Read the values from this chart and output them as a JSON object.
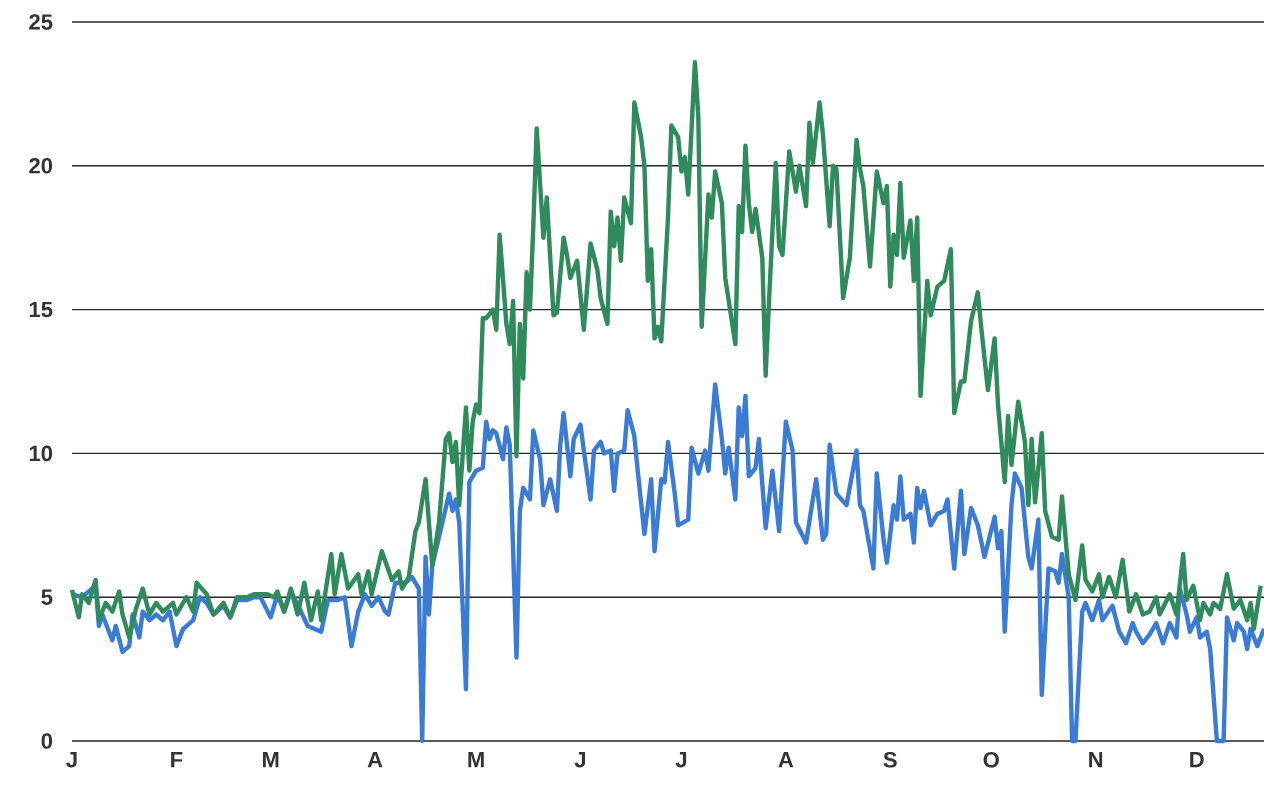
{
  "chart_data": {
    "type": "line",
    "categories": [
      "J",
      null,
      null,
      null,
      null,
      null,
      null,
      null,
      null,
      null,
      null,
      null,
      null,
      null,
      null,
      null,
      null,
      null,
      null,
      null,
      null,
      null,
      null,
      null,
      null,
      null,
      null,
      null,
      null,
      null,
      null,
      "F",
      null,
      null,
      null,
      null,
      null,
      null,
      null,
      null,
      null,
      null,
      null,
      null,
      null,
      null,
      null,
      null,
      null,
      null,
      null,
      null,
      null,
      null,
      null,
      null,
      null,
      null,
      null,
      "M",
      null,
      null,
      null,
      null,
      null,
      null,
      null,
      null,
      null,
      null,
      null,
      null,
      null,
      null,
      null,
      null,
      null,
      null,
      null,
      null,
      null,
      null,
      null,
      null,
      null,
      null,
      null,
      null,
      null,
      null,
      "A",
      null,
      null,
      null,
      null,
      null,
      null,
      null,
      null,
      null,
      null,
      null,
      null,
      null,
      null,
      null,
      null,
      null,
      null,
      null,
      null,
      null,
      null,
      null,
      null,
      null,
      null,
      null,
      null,
      null,
      "M",
      null,
      null,
      null,
      null,
      null,
      null,
      null,
      null,
      null,
      null,
      null,
      null,
      null,
      null,
      null,
      null,
      null,
      null,
      null,
      null,
      null,
      null,
      null,
      null,
      null,
      null,
      null,
      null,
      null,
      null,
      "J",
      null,
      null,
      null,
      null,
      null,
      null,
      null,
      null,
      null,
      null,
      null,
      null,
      null,
      null,
      null,
      null,
      null,
      null,
      null,
      null,
      null,
      null,
      null,
      null,
      null,
      null,
      null,
      null,
      null,
      "J",
      null,
      null,
      null,
      null,
      null,
      null,
      null,
      null,
      null,
      null,
      null,
      null,
      null,
      null,
      null,
      null,
      null,
      null,
      null,
      null,
      null,
      null,
      null,
      null,
      null,
      null,
      null,
      null,
      null,
      null,
      "A",
      null,
      null,
      null,
      null,
      null,
      null,
      null,
      null,
      null,
      null,
      null,
      null,
      null,
      null,
      null,
      null,
      null,
      null,
      null,
      null,
      null,
      null,
      null,
      null,
      null,
      null,
      null,
      null,
      null,
      null,
      "S",
      null,
      null,
      null,
      null,
      null,
      null,
      null,
      null,
      null,
      null,
      null,
      null,
      null,
      null,
      null,
      null,
      null,
      null,
      null,
      null,
      null,
      null,
      null,
      null,
      null,
      null,
      null,
      null,
      null,
      "O",
      null,
      null,
      null,
      null,
      null,
      null,
      null,
      null,
      null,
      null,
      null,
      null,
      null,
      null,
      null,
      null,
      null,
      null,
      null,
      null,
      null,
      null,
      null,
      null,
      null,
      null,
      null,
      null,
      null,
      null,
      "N",
      null,
      null,
      null,
      null,
      null,
      null,
      null,
      null,
      null,
      null,
      null,
      null,
      null,
      null,
      null,
      null,
      null,
      null,
      null,
      null,
      null,
      null,
      null,
      null,
      null,
      null,
      null,
      null,
      null,
      "D",
      null,
      null,
      null,
      null,
      null,
      null,
      null,
      null,
      null,
      null,
      null,
      null,
      null,
      null,
      null,
      null,
      null,
      null,
      null,
      null
    ],
    "ylim": [
      0,
      25
    ],
    "yticks": [
      0,
      5,
      10,
      15,
      20,
      25
    ],
    "grid": "y",
    "series": [
      {
        "color": "#2f8a5c",
        "values": [
          5.25,
          null,
          4.3,
          5.1,
          null,
          4.8,
          null,
          5.6,
          4.2,
          null,
          4.8,
          null,
          4.5,
          null,
          5.2,
          4.4,
          null,
          3.6,
          null,
          4.6,
          null,
          5.3,
          null,
          4.4,
          null,
          4.8,
          null,
          4.5,
          null,
          null,
          4.8,
          4.4,
          null,
          null,
          5.0,
          null,
          4.5,
          5.5,
          null,
          null,
          5.1,
          null,
          4.4,
          null,
          null,
          4.8,
          null,
          4.3,
          null,
          5.0,
          null,
          null,
          5.0,
          null,
          5.1,
          null,
          5.1,
          null,
          5.1,
          null,
          5.0,
          5.2,
          null,
          4.5,
          null,
          5.3,
          null,
          4.4,
          null,
          5.5,
          null,
          4.2,
          null,
          5.2,
          4.2,
          null,
          null,
          6.5,
          5.1,
          null,
          6.5,
          null,
          5.3,
          null,
          null,
          5.8,
          5.1,
          null,
          5.9,
          5.1,
          null,
          null,
          6.6,
          null,
          null,
          5.6,
          null,
          5.9,
          5.3,
          null,
          5.7,
          null,
          7.3,
          7.6,
          null,
          9.1,
          7.6,
          6.1,
          null,
          7.6,
          null,
          10.5,
          10.7,
          9.7,
          10.4,
          8.2,
          null,
          11.6,
          9.4,
          11.1,
          11.7,
          11.4,
          14.7,
          14.7,
          null,
          15.0,
          14.3,
          17.6,
          null,
          14.5,
          13.8,
          15.3,
          9.9,
          14.5,
          12.6,
          16.3,
          15.0,
          17.9,
          21.3,
          null,
          17.5,
          18.9,
          null,
          14.8,
          14.9,
          null,
          17.5,
          16.9,
          16.1,
          null,
          16.7,
          null,
          14.3,
          null,
          17.3,
          null,
          16.4,
          15.4,
          null,
          14.5,
          18.4,
          17.2,
          18.2,
          16.7,
          18.9,
          null,
          18.0,
          22.2,
          null,
          21.0,
          20.0,
          16.0,
          17.1,
          14.0,
          14.4,
          13.9,
          null,
          18.2,
          21.4,
          null,
          21.0,
          19.8,
          20.3,
          19.0,
          null,
          23.6,
          21.7,
          14.4,
          null,
          19.0,
          18.2,
          19.8,
          null,
          18.7,
          16.1,
          null,
          null,
          13.8,
          18.6,
          17.7,
          20.7,
          18.7,
          17.7,
          18.5,
          null,
          16.8,
          12.7,
          15.3,
          null,
          20.1,
          17.2,
          16.9,
          null,
          20.5,
          null,
          19.1,
          20.0,
          null,
          18.6,
          21.5,
          20.1,
          null,
          22.2,
          21.1,
          null,
          17.9,
          20.0,
          19.9,
          null,
          15.4,
          null,
          16.8,
          null,
          20.9,
          19.9,
          19.3,
          null,
          16.5,
          null,
          19.8,
          null,
          18.7,
          19.3,
          15.8,
          17.6,
          16.9,
          19.4,
          16.8,
          null,
          18.1,
          16.0,
          18.2,
          12.0,
          null,
          16.0,
          14.8,
          null,
          15.8,
          null,
          16.0,
          null,
          17.1,
          11.4,
          null,
          12.5,
          12.5,
          null,
          14.6,
          null,
          15.6,
          14.4,
          null,
          12.2,
          null,
          14.0,
          11.7,
          null,
          9.0,
          11.3,
          9.6,
          null,
          11.8,
          null,
          10.4,
          8.2,
          10.5,
          8.3,
          null,
          10.7,
          8.0,
          null,
          7.1,
          null,
          7.0,
          8.5,
          null,
          5.8,
          null,
          4.9,
          null,
          6.8,
          5.6,
          null,
          5.2,
          null,
          5.8,
          5.0,
          null,
          5.7,
          null,
          5.0,
          null,
          6.3,
          null,
          4.5,
          null,
          5.1,
          null,
          4.4,
          null,
          4.5,
          null,
          5.0,
          4.4,
          null,
          null,
          5.1,
          null,
          4.4,
          null,
          6.5,
          4.9,
          null,
          5.4,
          null,
          4.2,
          4.8,
          null,
          4.4,
          4.8,
          null,
          4.6,
          null,
          5.8,
          null,
          4.6,
          null,
          4.9,
          null,
          4.2,
          4.8,
          3.9,
          null,
          5.4,
          null
        ]
      },
      {
        "color": "#3b7bd6",
        "values": [
          5.1,
          null,
          null,
          5.0,
          null,
          null,
          null,
          5.4,
          4.0,
          4.4,
          null,
          null,
          3.5,
          4.0,
          null,
          3.1,
          null,
          3.3,
          4.4,
          null,
          3.6,
          4.5,
          null,
          4.2,
          null,
          4.4,
          null,
          4.2,
          null,
          4.5,
          null,
          3.3,
          null,
          3.9,
          null,
          4.1,
          4.2,
          null,
          5.0,
          null,
          4.8,
          null,
          4.4,
          null,
          null,
          4.7,
          null,
          4.3,
          null,
          4.9,
          null,
          null,
          4.9,
          null,
          5.0,
          null,
          5.0,
          null,
          null,
          4.3,
          null,
          5.1,
          null,
          4.5,
          null,
          5.2,
          null,
          null,
          4.5,
          null,
          4.0,
          null,
          null,
          null,
          3.8,
          null,
          4.9,
          null,
          null,
          4.9,
          null,
          5.0,
          null,
          3.3,
          null,
          4.5,
          null,
          5.1,
          null,
          4.7,
          null,
          5.0,
          null,
          4.5,
          4.4,
          null,
          5.5,
          null,
          null,
          5.5,
          null,
          5.7,
          null,
          5.3,
          0.0,
          6.4,
          4.4,
          6.1,
          null,
          null,
          7.6,
          null,
          8.6,
          8.0,
          8.4,
          7.6,
          null,
          1.8,
          9.0,
          null,
          9.4,
          null,
          9.5,
          11.1,
          10.5,
          10.8,
          10.7,
          null,
          9.8,
          10.9,
          10.3,
          null,
          2.9,
          8.0,
          8.8,
          null,
          8.4,
          10.8,
          null,
          9.8,
          8.2,
          null,
          9.1,
          null,
          8.0,
          10.3,
          11.4,
          null,
          9.2,
          10.5,
          null,
          11.0,
          10.1,
          null,
          8.4,
          10.1,
          null,
          10.4,
          10.0,
          null,
          10.1,
          8.7,
          10.0,
          null,
          10.1,
          11.5,
          null,
          10.6,
          9.4,
          null,
          7.2,
          null,
          9.1,
          6.6,
          null,
          9.1,
          9.0,
          10.4,
          null,
          8.6,
          7.5,
          null,
          null,
          7.7,
          10.2,
          null,
          9.3,
          null,
          10.1,
          9.4,
          null,
          12.4,
          null,
          10.5,
          9.3,
          10.2,
          null,
          8.4,
          11.6,
          10.6,
          12.0,
          9.2,
          null,
          9.5,
          10.5,
          null,
          7.4,
          null,
          9.4,
          null,
          7.3,
          null,
          11.1,
          null,
          10.1,
          7.6,
          null,
          null,
          6.9,
          null,
          8.4,
          9.1,
          null,
          7.0,
          7.2,
          10.3,
          null,
          8.6,
          null,
          null,
          8.2,
          null,
          null,
          10.1,
          8.2,
          8.0,
          null,
          null,
          6.0,
          9.3,
          null,
          7.0,
          6.2,
          null,
          8.2,
          7.7,
          9.2,
          7.7,
          null,
          7.9,
          6.9,
          8.8,
          8.1,
          8.7,
          null,
          7.5,
          null,
          7.9,
          null,
          8.0,
          8.4,
          null,
          6.0,
          null,
          8.7,
          6.5,
          null,
          8.1,
          null,
          7.5,
          null,
          6.4,
          null,
          null,
          7.8,
          6.7,
          7.3,
          3.8,
          null,
          8.2,
          9.3,
          null,
          8.8,
          null,
          6.4,
          6.0,
          null,
          7.7,
          1.6,
          null,
          6.0,
          null,
          5.9,
          5.5,
          6.5,
          null,
          5.0,
          0.0,
          0.0,
          null,
          4.5,
          4.8,
          null,
          4.2,
          null,
          4.9,
          4.2,
          null,
          null,
          4.7,
          null,
          3.8,
          null,
          3.4,
          null,
          4.1,
          3.8,
          null,
          3.4,
          null,
          3.7,
          null,
          4.1,
          null,
          3.4,
          null,
          4.1,
          null,
          3.6,
          5.3,
          null,
          4.4,
          3.8,
          null,
          4.3,
          3.6,
          null,
          3.8,
          3.2,
          null,
          0.0,
          null,
          0.0,
          4.3,
          null,
          3.5,
          4.1,
          null,
          3.8,
          3.2,
          3.9,
          null,
          3.3,
          null,
          3.9
        ]
      }
    ]
  }
}
